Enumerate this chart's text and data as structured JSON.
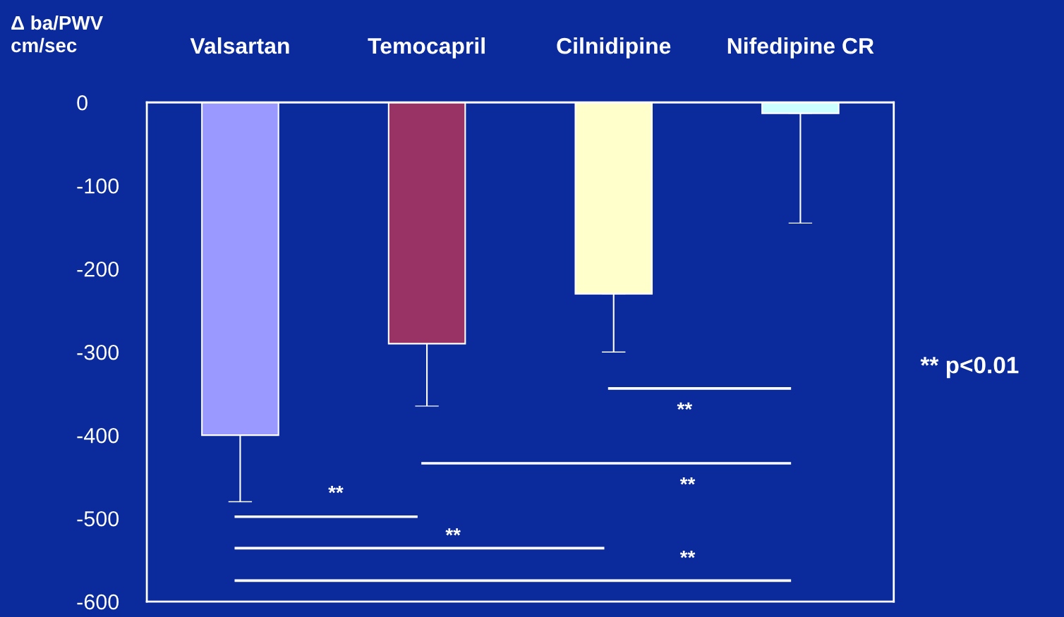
{
  "chart_data": {
    "type": "bar",
    "ylabel": "Δ ba/PWV\ncm/sec",
    "categories": [
      "Valsartan",
      "Temocapril",
      "Cilnidipine",
      "Nifedipine CR"
    ],
    "values": [
      -400,
      -290,
      -230,
      -13
    ],
    "colors": [
      "#9999ff",
      "#993366",
      "#ffffcc",
      "#ccffff"
    ],
    "errors": [
      [
        -480,
        -400
      ],
      [
        -365,
        -290
      ],
      [
        -300,
        -230
      ],
      [
        -145,
        -13
      ]
    ],
    "ylim": [
      -600,
      0
    ],
    "yticks": [
      0,
      -100,
      -200,
      -300,
      -400,
      -500,
      -600
    ],
    "grid": false,
    "annotations": [
      "**",
      "**",
      "**",
      "**",
      "**",
      "** p<0.01"
    ]
  }
}
